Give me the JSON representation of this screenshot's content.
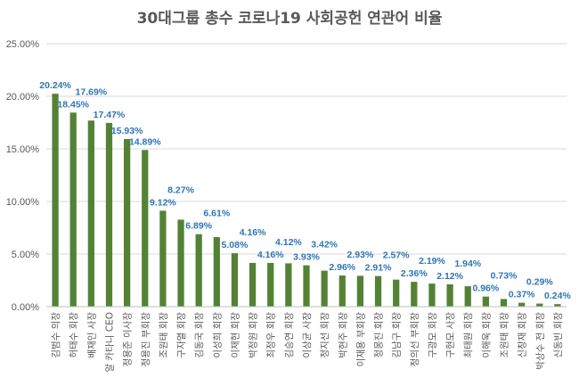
{
  "chart_data": {
    "type": "bar",
    "title": "30대그룹 총수 코로나19 사회공헌 연관어 비율",
    "xlabel": "",
    "ylabel": "",
    "ylim": [
      0,
      25
    ],
    "yticks": [
      "0.00%",
      "5.00%",
      "10.00%",
      "15.00%",
      "20.00%",
      "25.00%"
    ],
    "grid": true,
    "legend": "none",
    "bar_color": "#548235",
    "label_color": "#2e75b6",
    "categories": [
      "김범수 의장",
      "허태수 회장",
      "배재인 사장",
      "알 카타니 CEO",
      "정용준 이사장",
      "정용진 부회장",
      "조원태 회장",
      "구자열 회장",
      "김동국 회장",
      "이성희 회장",
      "이재현 회장",
      "박정원 회장",
      "최정우 회장",
      "김승연 회장",
      "이상균 사장",
      "정지선 회장",
      "박현주 회장",
      "이재용 부회장",
      "정몽진 회장",
      "김남구 회장",
      "정의선 부회장",
      "구광모 회장",
      "구현모 사장",
      "최태원 회장",
      "이해욱 회장",
      "조원태 회장",
      "신창재 회장",
      "박상수 전 회장",
      "신동빈 회장"
    ],
    "values": [
      20.24,
      18.45,
      17.69,
      17.47,
      15.93,
      14.89,
      9.12,
      8.27,
      6.89,
      6.61,
      5.08,
      4.16,
      4.16,
      4.12,
      3.93,
      3.42,
      2.96,
      2.93,
      2.91,
      2.57,
      2.36,
      2.19,
      2.12,
      1.94,
      0.96,
      0.73,
      0.37,
      0.29,
      0.24
    ],
    "data_labels": [
      "20.24%",
      "18.45%",
      "17.69%",
      "17.47%",
      "15.93%",
      "14.89%",
      "9.12%",
      "8.27%",
      "6.89%",
      "6.61%",
      "5.08%",
      "4.16%",
      "4.16%",
      "4.12%",
      "3.93%",
      "3.42%",
      "2.96%",
      "2.93%",
      "2.91%",
      "2.57%",
      "2.36%",
      "2.19%",
      "2.12%",
      "1.94%",
      "0.96%",
      "0.73%",
      "0.37%",
      "0.29%",
      "0.24%"
    ]
  }
}
